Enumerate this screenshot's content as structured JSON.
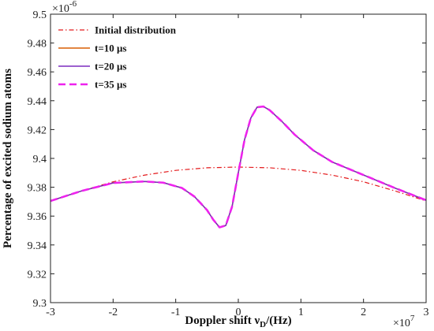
{
  "chart_data": {
    "type": "line",
    "title": "",
    "xlabel": "Doppler  shift ν",
    "xlabel_sub": "D",
    "xlabel_unit": "/(Hz)",
    "ylabel": "Percentage of excited sodium atoms",
    "x_multiplier": "×10",
    "x_multiplier_exp": "7",
    "y_multiplier": "×10",
    "y_multiplier_exp": "-6",
    "xlim": [
      -3,
      3
    ],
    "ylim": [
      9.3,
      9.5
    ],
    "xticks": [
      -3,
      -2,
      -1,
      0,
      1,
      2,
      3
    ],
    "yticks": [
      9.3,
      9.32,
      9.34,
      9.36,
      9.38,
      9.4,
      9.42,
      9.44,
      9.46,
      9.48,
      9.5
    ],
    "ytick_labels": [
      "9.3",
      "9.32",
      "9.34",
      "9.36",
      "9.38",
      "9.4",
      "9.42",
      "9.44",
      "9.46",
      "9.48",
      "9.5"
    ],
    "grid": false,
    "legend_position": "top-left",
    "series": [
      {
        "name": "Initial distribution",
        "color": "#e41a1c",
        "style": "dashdot",
        "width": 1.2,
        "x": [
          -3,
          -2.5,
          -2,
          -1.5,
          -1,
          -0.5,
          0,
          0.5,
          1,
          1.5,
          2,
          2.5,
          3
        ],
        "y": [
          9.3705,
          9.3775,
          9.3838,
          9.3884,
          9.3917,
          9.3935,
          9.394,
          9.3935,
          9.3917,
          9.3884,
          9.3838,
          9.3775,
          9.3705
        ]
      },
      {
        "name": "t=10 μs",
        "color": "#d95f02",
        "style": "solid",
        "width": 1.5,
        "x": [
          -3,
          -2.5,
          -2,
          -1.5,
          -1.2,
          -0.9,
          -0.7,
          -0.5,
          -0.4,
          -0.3,
          -0.2,
          -0.1,
          0,
          0.1,
          0.2,
          0.3,
          0.4,
          0.5,
          0.7,
          0.9,
          1.2,
          1.5,
          2,
          2.5,
          3
        ],
        "y": [
          9.3705,
          9.3775,
          9.383,
          9.384,
          9.3832,
          9.3795,
          9.3735,
          9.3642,
          9.3575,
          9.3522,
          9.3535,
          9.3665,
          9.39,
          9.413,
          9.428,
          9.4355,
          9.436,
          9.4335,
          9.4255,
          9.4165,
          9.4055,
          9.3975,
          9.3885,
          9.3795,
          9.371
        ]
      },
      {
        "name": "t=20 μs",
        "color": "#7b2cbf",
        "style": "solid",
        "width": 1.5,
        "x": [
          -3,
          -2.5,
          -2,
          -1.5,
          -1.2,
          -0.9,
          -0.7,
          -0.5,
          -0.4,
          -0.3,
          -0.2,
          -0.1,
          0,
          0.1,
          0.2,
          0.3,
          0.4,
          0.5,
          0.7,
          0.9,
          1.2,
          1.5,
          2,
          2.5,
          3
        ],
        "y": [
          9.3705,
          9.3775,
          9.383,
          9.384,
          9.3832,
          9.3795,
          9.3735,
          9.3642,
          9.3575,
          9.3522,
          9.3535,
          9.3665,
          9.39,
          9.413,
          9.428,
          9.4355,
          9.436,
          9.4335,
          9.4255,
          9.4165,
          9.4055,
          9.3975,
          9.3885,
          9.3795,
          9.371
        ]
      },
      {
        "name": "t=35 μs",
        "color": "#ee22ee",
        "style": "dashed",
        "width": 2.6,
        "x": [
          -3,
          -2.5,
          -2,
          -1.5,
          -1.2,
          -0.9,
          -0.7,
          -0.5,
          -0.4,
          -0.3,
          -0.2,
          -0.1,
          0,
          0.1,
          0.2,
          0.3,
          0.4,
          0.5,
          0.7,
          0.9,
          1.2,
          1.5,
          2,
          2.5,
          3
        ],
        "y": [
          9.3705,
          9.3775,
          9.383,
          9.384,
          9.3832,
          9.3795,
          9.3735,
          9.3642,
          9.3575,
          9.3522,
          9.3535,
          9.3665,
          9.39,
          9.413,
          9.428,
          9.4355,
          9.436,
          9.4335,
          9.4255,
          9.4165,
          9.4055,
          9.3975,
          9.3885,
          9.3795,
          9.371
        ]
      }
    ]
  }
}
